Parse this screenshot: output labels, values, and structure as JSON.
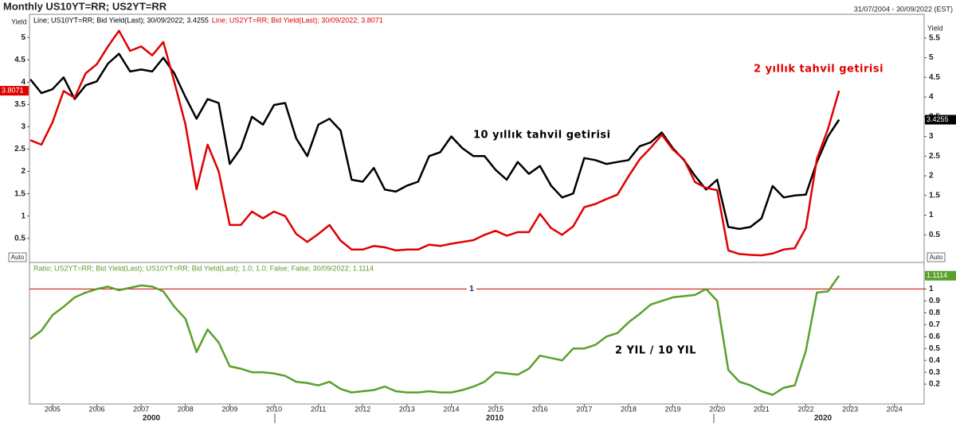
{
  "header": {
    "title": "Monthly US10YT=RR; US2YT=RR",
    "date_range": "31/07/2004 - 30/09/2022 (EST)",
    "auto_label": "Auto"
  },
  "chart_data": [
    {
      "type": "line",
      "ylabel": "Yield",
      "y2label": "Yield",
      "xlim": [
        2004.48,
        2024.67
      ],
      "xticks": [
        2005,
        2006,
        2007,
        2008,
        2009,
        2010,
        2011,
        2012,
        2013,
        2014,
        2015,
        2016,
        2017,
        2018,
        2019,
        2020,
        2021,
        2022,
        2023,
        2024
      ],
      "ylim": [
        0.05,
        5.27
      ],
      "yticks": [
        0.5,
        1,
        1.5,
        2,
        2.5,
        3,
        3.5,
        4,
        4.5,
        5
      ],
      "y2lim": [
        -0.1,
        5.82
      ],
      "y2ticks": [
        0.5,
        1,
        1.5,
        2,
        2.5,
        3,
        3.5,
        4,
        4.5,
        5,
        5.5
      ],
      "x": [
        2004.5,
        2004.75,
        2005,
        2005.25,
        2005.5,
        2005.75,
        2006,
        2006.25,
        2006.5,
        2006.75,
        2007,
        2007.25,
        2007.5,
        2007.75,
        2008,
        2008.25,
        2008.5,
        2008.75,
        2009,
        2009.25,
        2009.5,
        2009.75,
        2010,
        2010.25,
        2010.5,
        2010.75,
        2011,
        2011.25,
        2011.5,
        2011.75,
        2012,
        2012.25,
        2012.5,
        2012.75,
        2013,
        2013.25,
        2013.5,
        2013.75,
        2014,
        2014.25,
        2014.5,
        2014.75,
        2015,
        2015.25,
        2015.5,
        2015.75,
        2016,
        2016.25,
        2016.5,
        2016.75,
        2017,
        2017.25,
        2017.5,
        2017.75,
        2018,
        2018.25,
        2018.5,
        2018.75,
        2019,
        2019.25,
        2019.5,
        2019.75,
        2020,
        2020.25,
        2020.5,
        2020.75,
        2021,
        2021.25,
        2021.5,
        2021.75,
        2022,
        2022.25,
        2022.5,
        2022.75
      ],
      "series": [
        {
          "name": "Line; US10YT=RR; Bid Yield(Last); 30/09/2022; 3.4255",
          "color": "#000000",
          "axis": "y2",
          "values": [
            4.45,
            4.1,
            4.2,
            4.5,
            3.95,
            4.3,
            4.4,
            4.85,
            5.1,
            4.65,
            4.7,
            4.65,
            5.0,
            4.6,
            4.0,
            3.45,
            3.95,
            3.85,
            2.3,
            2.7,
            3.5,
            3.3,
            3.8,
            3.85,
            2.95,
            2.5,
            3.3,
            3.45,
            3.15,
            1.9,
            1.85,
            2.2,
            1.65,
            1.6,
            1.75,
            1.85,
            2.5,
            2.6,
            3.0,
            2.7,
            2.5,
            2.5,
            2.15,
            1.9,
            2.35,
            2.05,
            2.25,
            1.75,
            1.45,
            1.55,
            2.45,
            2.4,
            2.3,
            2.35,
            2.4,
            2.75,
            2.85,
            3.1,
            2.7,
            2.4,
            2.0,
            1.65,
            1.9,
            0.7,
            0.65,
            0.7,
            0.92,
            1.74,
            1.45,
            1.5,
            1.52,
            2.35,
            3.0,
            3.4255
          ]
        },
        {
          "name": "Line; US2YT=RR; Bid Yield(Last); 30/09/2022; 3.8071",
          "color": "#e00000",
          "values": [
            2.7,
            2.6,
            3.1,
            3.8,
            3.65,
            4.2,
            4.4,
            4.8,
            5.15,
            4.7,
            4.8,
            4.6,
            4.9,
            4.0,
            3.05,
            1.6,
            2.6,
            2.0,
            0.8,
            0.8,
            1.1,
            0.95,
            1.1,
            1.0,
            0.6,
            0.42,
            0.6,
            0.8,
            0.45,
            0.25,
            0.25,
            0.33,
            0.3,
            0.23,
            0.25,
            0.25,
            0.36,
            0.33,
            0.38,
            0.42,
            0.46,
            0.58,
            0.67,
            0.56,
            0.64,
            0.64,
            1.05,
            0.73,
            0.58,
            0.77,
            1.2,
            1.27,
            1.38,
            1.48,
            1.89,
            2.27,
            2.53,
            2.82,
            2.49,
            2.27,
            1.76,
            1.63,
            1.58,
            0.23,
            0.15,
            0.13,
            0.12,
            0.16,
            0.25,
            0.28,
            0.73,
            2.28,
            2.95,
            3.8071
          ]
        }
      ],
      "annotations": [
        {
          "text": "2 yıllık tahvil getirisi",
          "color": "#e00000"
        },
        {
          "text": "10 yıllık tahvil getirisi",
          "color": "#000000"
        }
      ]
    },
    {
      "type": "line",
      "xlim": [
        2004.48,
        2024.67
      ],
      "xticks": [
        2005,
        2006,
        2007,
        2008,
        2009,
        2010,
        2011,
        2012,
        2013,
        2014,
        2015,
        2016,
        2017,
        2018,
        2019,
        2020,
        2021,
        2022,
        2023,
        2024
      ],
      "decade_labels": [
        "2000",
        "2010",
        "2020"
      ],
      "ylim": [
        0.04,
        1.21
      ],
      "yticks": [
        0.2,
        0.3,
        0.4,
        0.5,
        0.6,
        0.7,
        0.8,
        0.9,
        1
      ],
      "x": [
        2004.5,
        2004.75,
        2005,
        2005.25,
        2005.5,
        2005.75,
        2006,
        2006.25,
        2006.5,
        2006.75,
        2007,
        2007.25,
        2007.5,
        2007.75,
        2008,
        2008.25,
        2008.5,
        2008.75,
        2009,
        2009.25,
        2009.5,
        2009.75,
        2010,
        2010.25,
        2010.5,
        2010.75,
        2011,
        2011.25,
        2011.5,
        2011.75,
        2012,
        2012.25,
        2012.5,
        2012.75,
        2013,
        2013.25,
        2013.5,
        2013.75,
        2014,
        2014.25,
        2014.5,
        2014.75,
        2015,
        2015.25,
        2015.5,
        2015.75,
        2016,
        2016.25,
        2016.5,
        2016.75,
        2017,
        2017.25,
        2017.5,
        2017.75,
        2018,
        2018.25,
        2018.5,
        2018.75,
        2019,
        2019.25,
        2019.5,
        2019.75,
        2020,
        2020.25,
        2020.5,
        2020.75,
        2021,
        2021.25,
        2021.5,
        2021.75,
        2022,
        2022.25,
        2022.5,
        2022.75
      ],
      "series": [
        {
          "name": "Ratio; US2YT=RR; Bid Yield(Last); US10YT=RR; Bid Yield(Last);  1.0; 1.0; False; False; 30/09/2022; 1.1114",
          "color": "#5aa02c",
          "values": [
            0.58,
            0.65,
            0.78,
            0.85,
            0.93,
            0.97,
            1.0,
            1.02,
            0.99,
            1.01,
            1.03,
            1.02,
            0.98,
            0.85,
            0.75,
            0.47,
            0.66,
            0.55,
            0.35,
            0.33,
            0.3,
            0.3,
            0.29,
            0.27,
            0.22,
            0.21,
            0.19,
            0.22,
            0.16,
            0.13,
            0.14,
            0.15,
            0.18,
            0.14,
            0.13,
            0.13,
            0.14,
            0.13,
            0.13,
            0.15,
            0.18,
            0.22,
            0.3,
            0.29,
            0.28,
            0.33,
            0.44,
            0.42,
            0.4,
            0.5,
            0.5,
            0.53,
            0.6,
            0.63,
            0.72,
            0.79,
            0.87,
            0.9,
            0.93,
            0.94,
            0.95,
            1.0,
            0.9,
            0.32,
            0.22,
            0.19,
            0.14,
            0.11,
            0.17,
            0.19,
            0.48,
            0.97,
            0.98,
            1.1114
          ]
        }
      ],
      "refline": {
        "value": 1,
        "color": "#cc0000"
      },
      "annotations": [
        {
          "text": "2 YIL / 10 YIL",
          "color": "#000000"
        }
      ]
    }
  ]
}
